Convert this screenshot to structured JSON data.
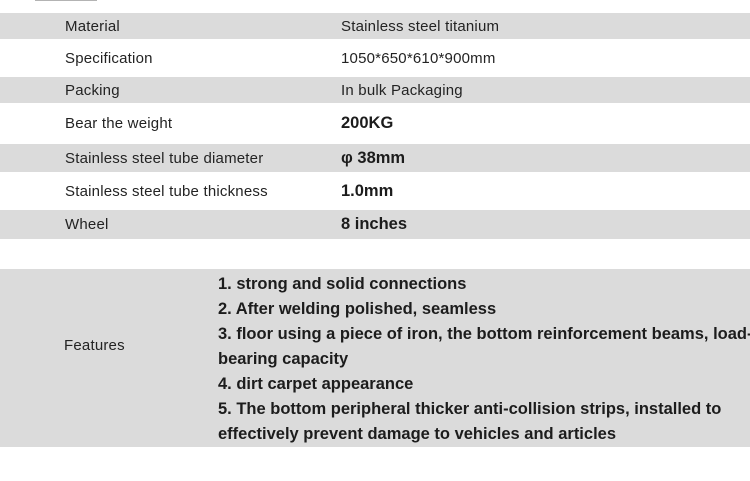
{
  "colors": {
    "row_stripe": "#dbdbdb",
    "background": "#ffffff",
    "text": "#232323"
  },
  "spec_table": {
    "rows": [
      {
        "label": "Material",
        "value": "Stainless steel titanium"
      },
      {
        "label": "Specification",
        "value": "1050*650*610*900mm"
      },
      {
        "label": "Packing",
        "value": "In bulk Packaging"
      },
      {
        "label": "Bear the weight",
        "value": "200KG"
      },
      {
        "label": "Stainless steel tube diameter",
        "value": "φ 38mm"
      },
      {
        "label": "Stainless steel tube thickness",
        "value": "1.0mm"
      },
      {
        "label": "Wheel",
        "value": "8 inches"
      }
    ]
  },
  "features": {
    "label": "Features",
    "items": [
      "1. strong and solid connections",
      "2. After welding polished, seamless",
      "3. floor using a piece of iron, the bottom reinforcement beams, load-bearing capacity",
      "4. dirt carpet appearance",
      "5. The bottom peripheral thicker anti-collision strips, installed to effectively prevent damage to vehicles and articles"
    ]
  }
}
